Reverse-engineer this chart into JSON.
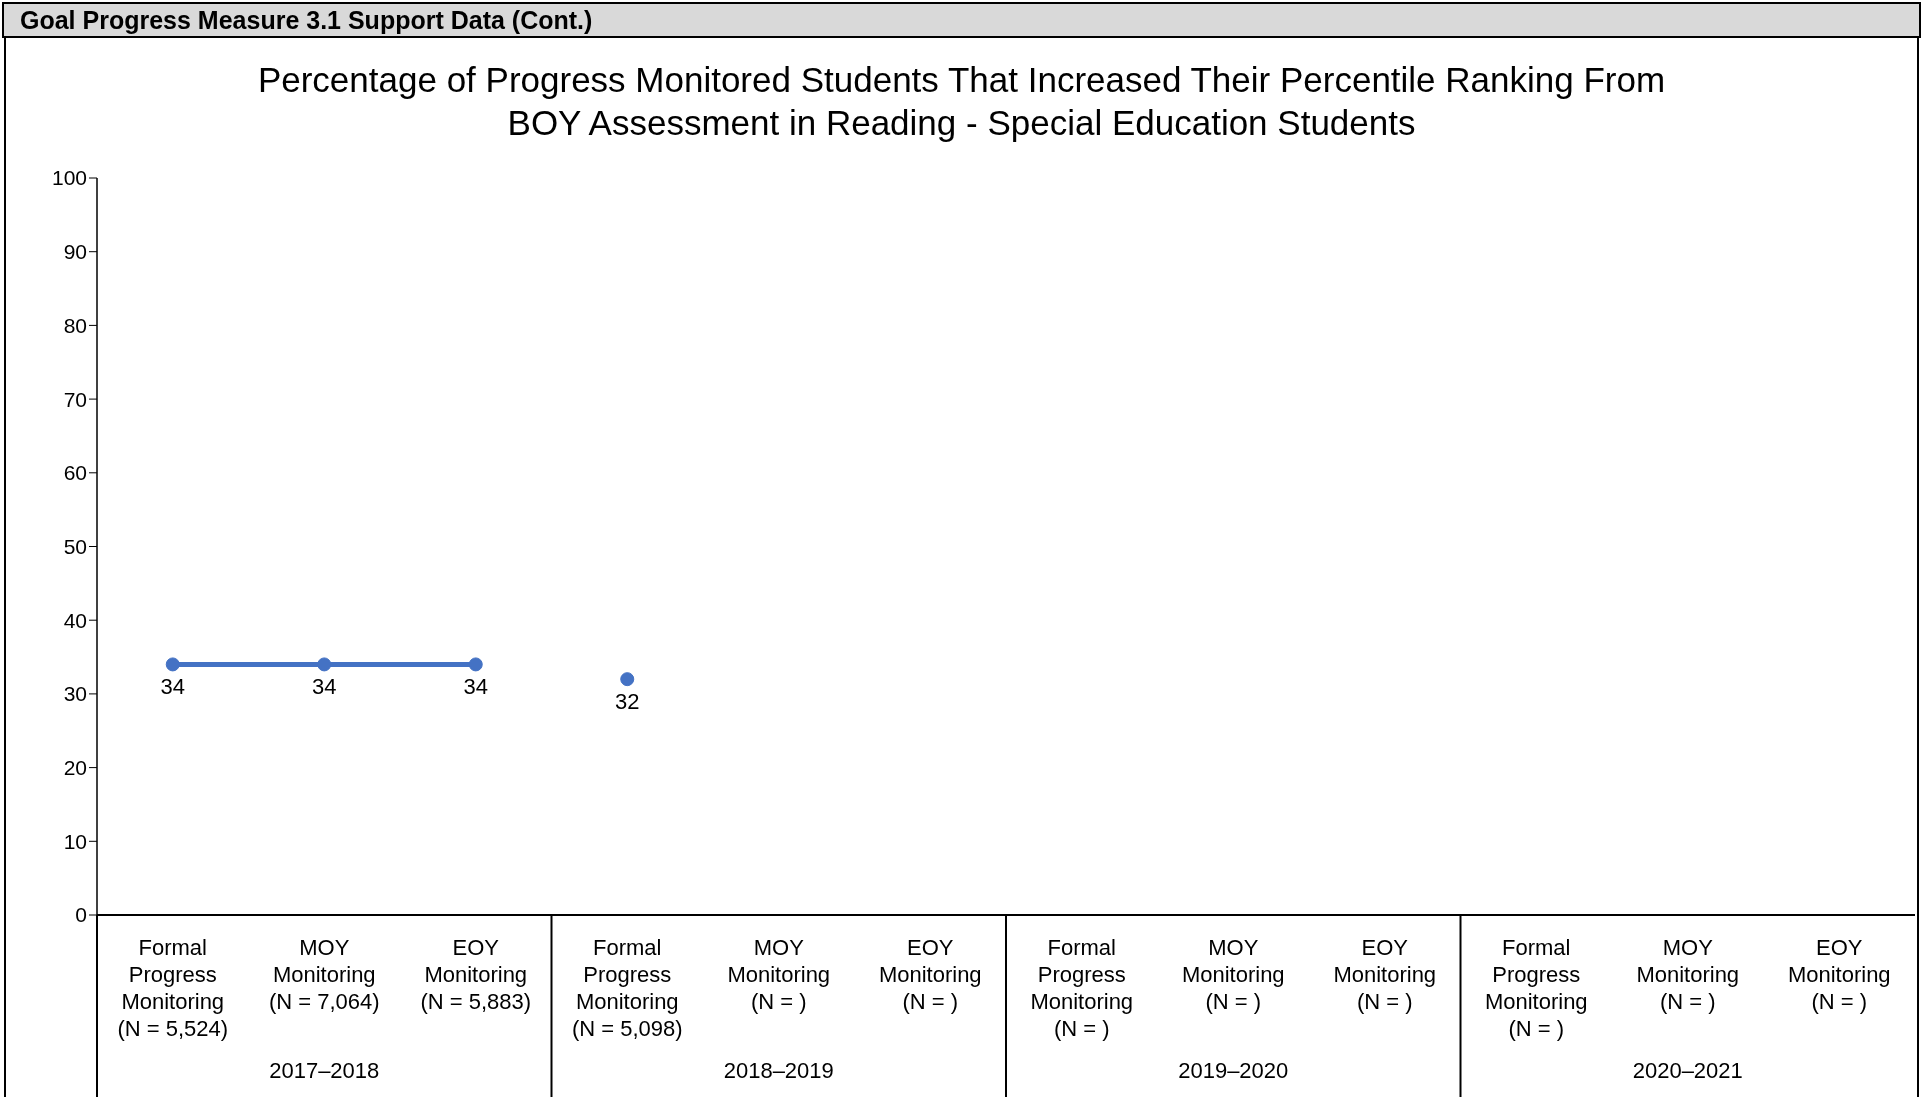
{
  "chart_data": {
    "type": "line",
    "title": "Percentage of Progress Monitored Students That Increased Their Percentile Ranking From BOY Assessment in Reading - Special Education Students",
    "categories": [
      "Formal Progress Monitoring (N = 5,524)",
      "MOY Monitoring (N = 7,064)",
      "EOY Monitoring (N = 5,883)",
      "Formal Progress Monitoring (N = 5,098)",
      "MOY Monitoring (N = )",
      "EOY Monitoring (N = )",
      "Formal Progress Monitoring (N = )",
      "MOY Monitoring (N = )",
      "EOY Monitoring (N = )",
      "Formal Progress Monitoring (N = )",
      "MOY Monitoring (N = )",
      "EOY Monitoring (N = )"
    ],
    "series": [
      {
        "color": "#4472c4",
        "values": [
          34,
          34,
          34,
          null,
          null,
          null,
          null,
          null,
          null,
          null,
          null,
          null
        ]
      },
      {
        "color": "#4472c4",
        "values": [
          null,
          null,
          null,
          32,
          null,
          null,
          null,
          null,
          null,
          null,
          null,
          null
        ]
      }
    ],
    "ylim": [
      0,
      100
    ],
    "yticks": [
      0,
      10,
      20,
      30,
      40,
      50,
      60,
      70,
      80,
      90,
      100
    ],
    "marker": "circle",
    "line_style": "solid",
    "data_labels": true,
    "annotations": [
      "Goal Progress Measure 3.1 Support Data (Cont.)",
      "2017–2018",
      "2018–2019",
      "2019–2020",
      "2020–2021"
    ]
  }
}
